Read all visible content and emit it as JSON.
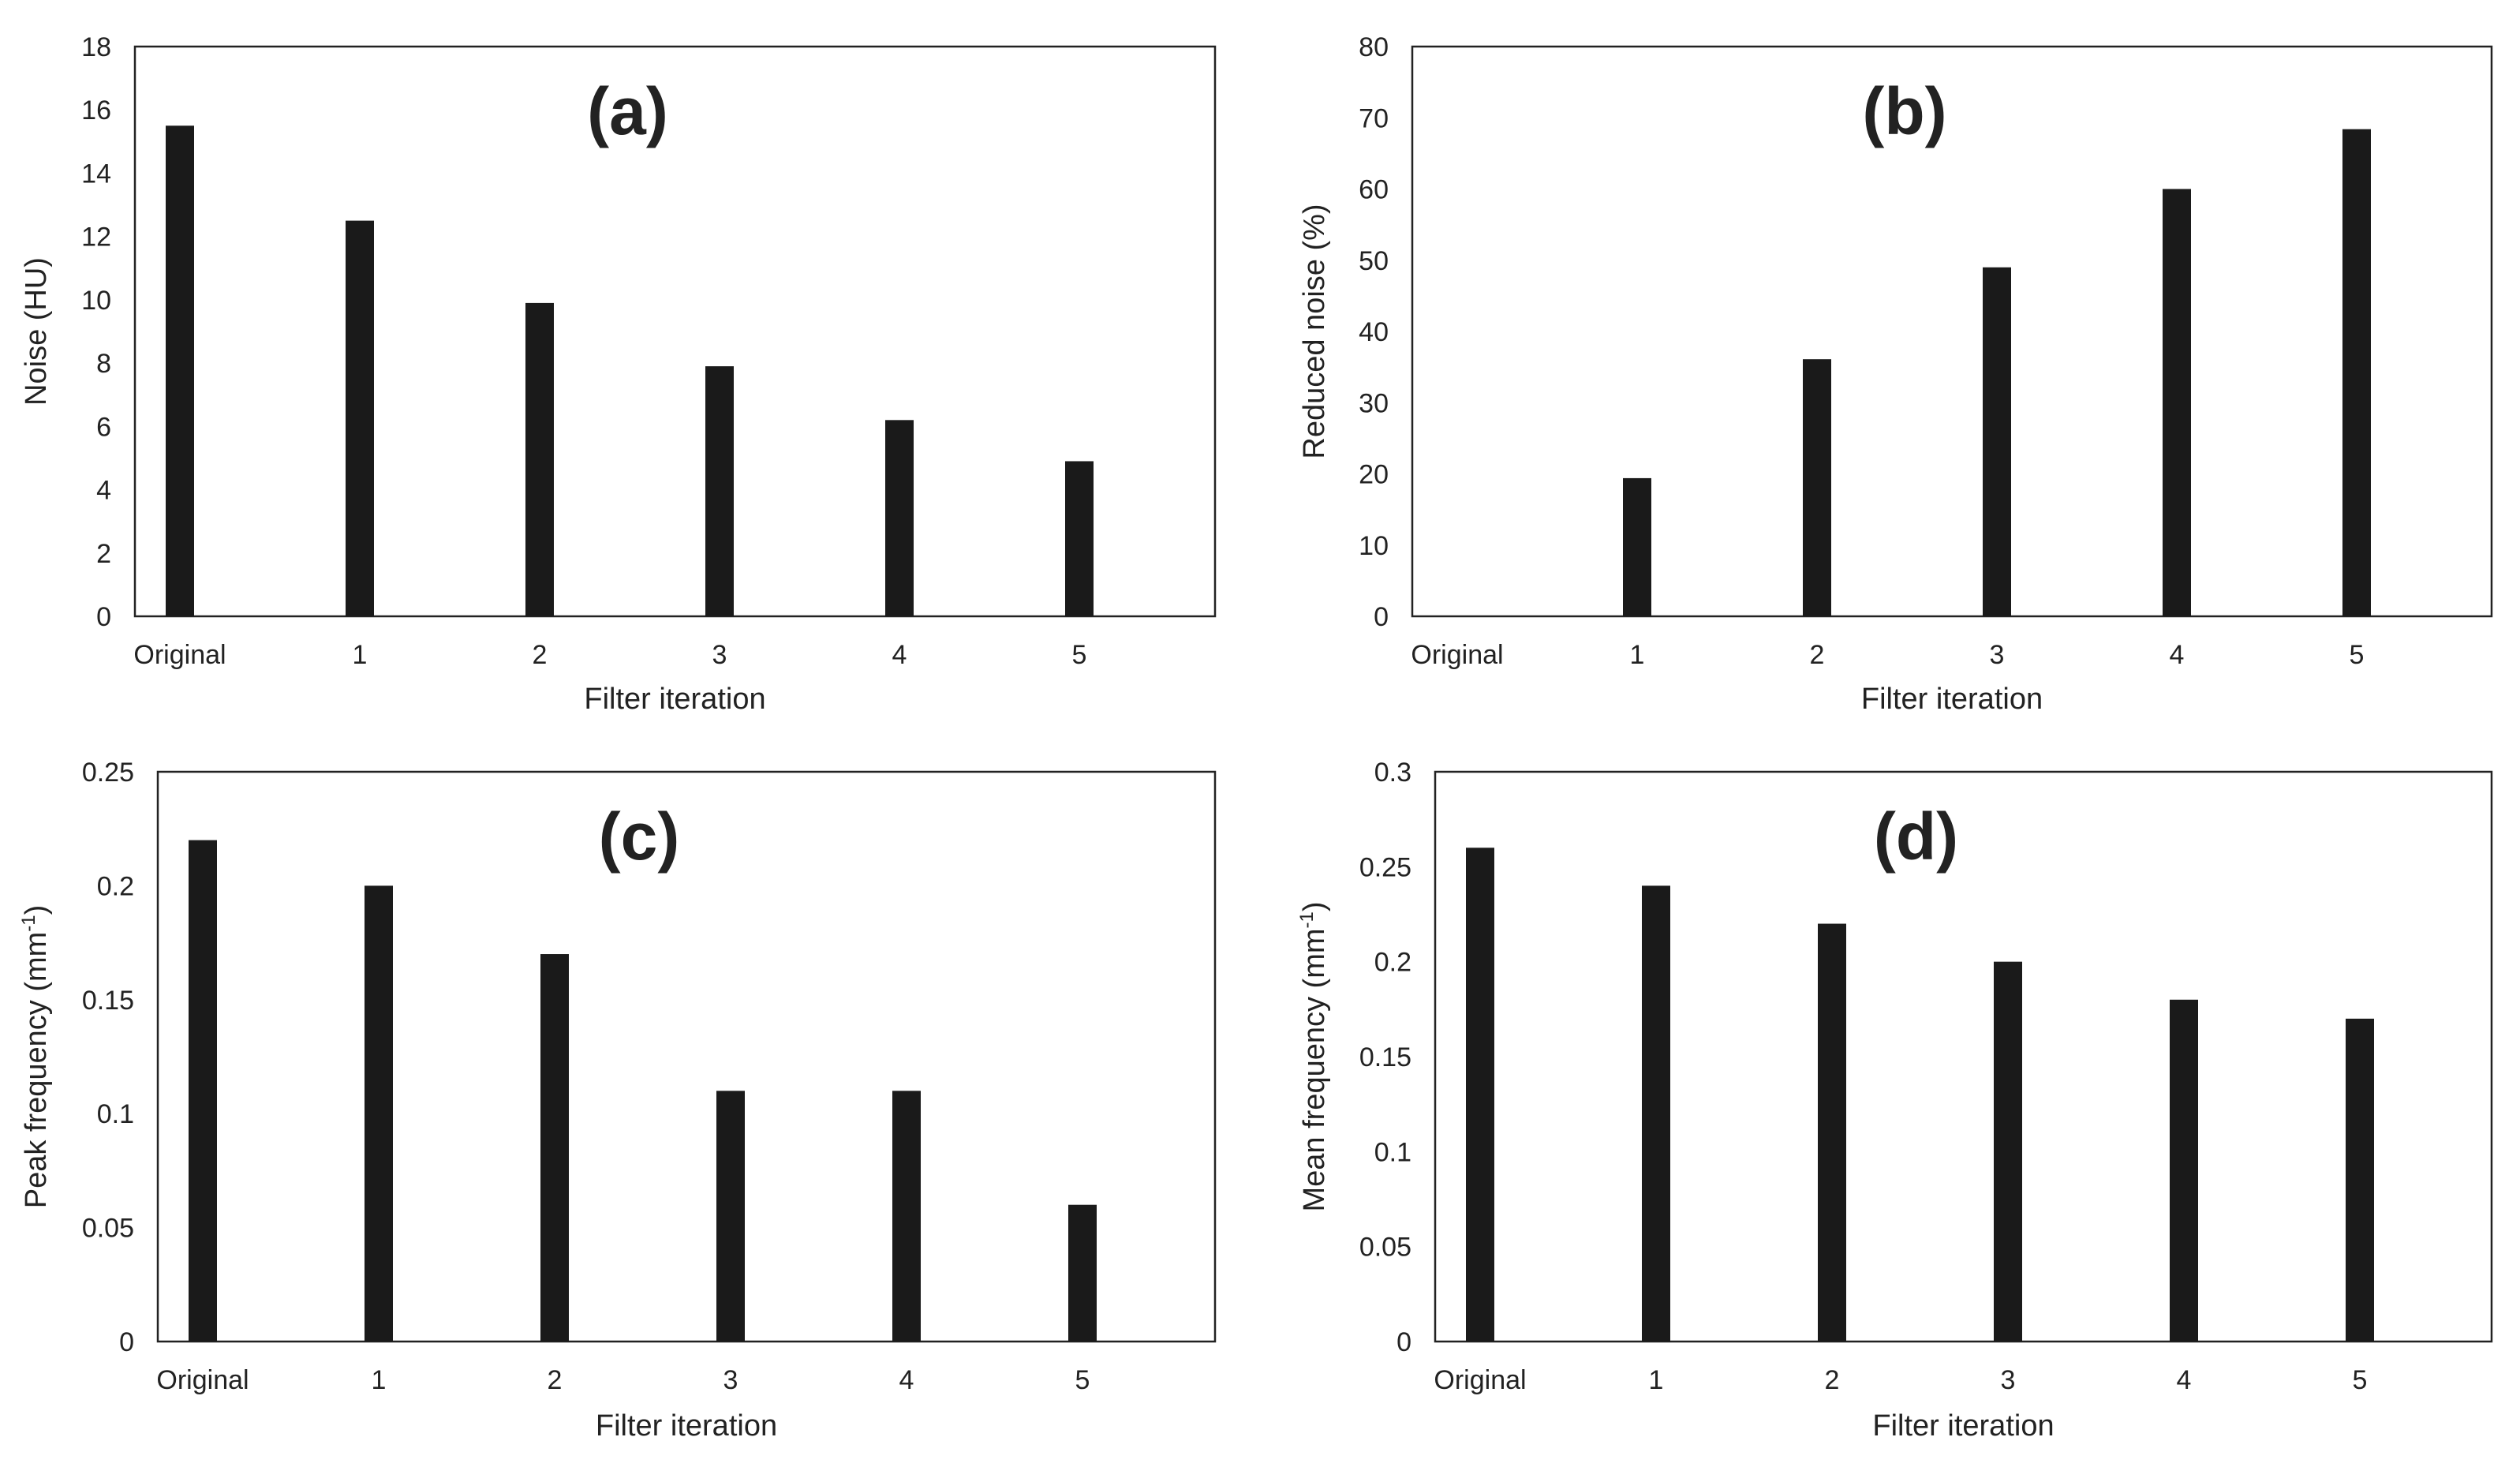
{
  "chart_data": [
    {
      "type": "bar",
      "title": "(a)",
      "xlabel": "Filter iteration",
      "ylabel": "Noise (HU)",
      "ylabel_sup": "",
      "ylabel_tail": "",
      "categories": [
        "Original",
        "1",
        "2",
        "3",
        "4",
        "5"
      ],
      "values": [
        15.5,
        12.5,
        9.9,
        7.9,
        6.2,
        4.9
      ],
      "ylim": [
        0,
        18
      ],
      "yticks": [
        "0",
        "2",
        "4",
        "6",
        "8",
        "10",
        "12",
        "14",
        "16",
        "18"
      ],
      "bar_color": "#1a1a1a"
    },
    {
      "type": "bar",
      "title": "(b)",
      "xlabel": "Filter iteration",
      "ylabel": "Reduced noise (%)",
      "ylabel_sup": "",
      "ylabel_tail": "",
      "categories": [
        "Original",
        "1",
        "2",
        "3",
        "4",
        "5"
      ],
      "values": [
        0,
        19.4,
        36.1,
        49.0,
        60.0,
        68.4
      ],
      "ylim": [
        0,
        80
      ],
      "yticks": [
        "0",
        "10",
        "20",
        "30",
        "40",
        "50",
        "60",
        "70",
        "80"
      ],
      "bar_color": "#1a1a1a"
    },
    {
      "type": "bar",
      "title": "(c)",
      "xlabel": "Filter iteration",
      "ylabel": "Peak frequency (mm",
      "ylabel_sup": "-1",
      "ylabel_tail": ")",
      "categories": [
        "Original",
        "1",
        "2",
        "3",
        "4",
        "5"
      ],
      "values": [
        0.22,
        0.2,
        0.17,
        0.11,
        0.11,
        0.06
      ],
      "ylim": [
        0,
        0.25
      ],
      "yticks": [
        "0",
        "0.05",
        "0.1",
        "0.15",
        "0.2",
        "0.25"
      ],
      "bar_color": "#1a1a1a"
    },
    {
      "type": "bar",
      "title": "(d)",
      "xlabel": "Filter iteration",
      "ylabel": "Mean frequency (mm",
      "ylabel_sup": "-1",
      "ylabel_tail": ")",
      "categories": [
        "Original",
        "1",
        "2",
        "3",
        "4",
        "5"
      ],
      "values": [
        0.26,
        0.24,
        0.22,
        0.2,
        0.18,
        0.17
      ],
      "ylim": [
        0,
        0.3
      ],
      "yticks": [
        "0",
        "0.05",
        "0.1",
        "0.15",
        "0.2",
        "0.25",
        "0.3"
      ],
      "bar_color": "#1a1a1a"
    }
  ]
}
